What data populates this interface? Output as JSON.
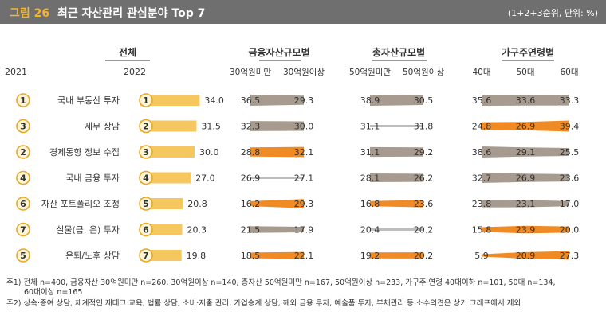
{
  "header": {
    "label": "그림 26",
    "title": "최근 자산관리 관심분야 Top 7",
    "unit": "(1+2+3순위, 단위: %)"
  },
  "chart_data": {
    "type": "bar",
    "title": "최근 자산관리 관심분야 Top 7",
    "unit": "(1+2+3순위, 단위: %)",
    "categories": [
      "국내 부동산 투자",
      "세무 상담",
      "경제동향 정보 수집",
      "국내 금융 투자",
      "자산 포트폴리오 조정",
      "실물(금, 은) 투자",
      "은퇴/노후 상담"
    ],
    "rank_2021": [
      "1",
      "3",
      "2",
      "4",
      "6",
      "7",
      "5"
    ],
    "rank_2022": [
      "1",
      "2",
      "3",
      "4",
      "5",
      "6",
      "7"
    ],
    "col_2021_label": "2021",
    "col_2022_label": "2022",
    "total": {
      "name": "전체",
      "values": [
        34.0,
        31.5,
        30.0,
        27.0,
        20.8,
        20.3,
        19.8
      ],
      "labels": [
        "34.0",
        "31.5",
        "30.0",
        "27.0",
        "20.8",
        "20.3",
        "19.8"
      ],
      "bar_color": "#f6c75e"
    },
    "groups": [
      {
        "name": "금융자산규모별",
        "subs": [
          "30억원미만",
          "30억원이상"
        ],
        "values": [
          [
            36.5,
            29.3
          ],
          [
            32.3,
            30.0
          ],
          [
            28.8,
            32.1
          ],
          [
            26.9,
            27.1
          ],
          [
            16.2,
            29.3
          ],
          [
            21.5,
            17.9
          ],
          [
            18.5,
            22.1
          ]
        ],
        "labels": [
          [
            "36.5",
            "29.3"
          ],
          [
            "32.3",
            "30.0"
          ],
          [
            "28.8",
            "32.1"
          ],
          [
            "26.9",
            "27.1"
          ],
          [
            "16.2",
            "29.3"
          ],
          [
            "21.5",
            "17.9"
          ],
          [
            "18.5",
            "22.1"
          ]
        ]
      },
      {
        "name": "총자산규모별",
        "subs": [
          "50억원미만",
          "50억원이상"
        ],
        "values": [
          [
            38.9,
            30.5
          ],
          [
            31.1,
            31.8
          ],
          [
            31.1,
            29.2
          ],
          [
            28.1,
            26.2
          ],
          [
            16.8,
            23.6
          ],
          [
            20.4,
            20.2
          ],
          [
            19.2,
            20.2
          ]
        ],
        "labels": [
          [
            "38.9",
            "30.5"
          ],
          [
            "31.1",
            "31.8"
          ],
          [
            "31.1",
            "29.2"
          ],
          [
            "28.1",
            "26.2"
          ],
          [
            "16.8",
            "23.6"
          ],
          [
            "20.4",
            "20.2"
          ],
          [
            "19.2",
            "20.2"
          ]
        ]
      },
      {
        "name": "가구주연령별",
        "subs": [
          "40대",
          "50대",
          "60대"
        ],
        "values": [
          [
            35.6,
            33.6,
            33.3
          ],
          [
            24.8,
            26.9,
            39.4
          ],
          [
            38.6,
            29.1,
            25.5
          ],
          [
            32.7,
            26.9,
            23.6
          ],
          [
            23.8,
            23.1,
            17.0
          ],
          [
            15.8,
            23.9,
            20.0
          ],
          [
            5.9,
            20.9,
            27.3
          ]
        ],
        "labels": [
          [
            "35.6",
            "33.6",
            "33.3"
          ],
          [
            "24.8",
            "26.9",
            "39.4"
          ],
          [
            "38.6",
            "29.1",
            "25.5"
          ],
          [
            "32.7",
            "26.9",
            "23.6"
          ],
          [
            "23.8",
            "23.1",
            "17.0"
          ],
          [
            "15.8",
            "23.9",
            "20.0"
          ],
          [
            "5.9",
            "20.9",
            "27.3"
          ]
        ]
      }
    ],
    "colors": {
      "increase": "#f08a24",
      "decrease": "#a69b8e",
      "flat": "#bdbdbd"
    }
  },
  "notes": {
    "note1_line1": "주1) 전체 n=400, 금융자산 30억원미만 n=260, 30억원이상 n=140, 총자산 50억원미만 n=167, 50억원이상 n=233, 가구주 연령 40대이하 n=101, 50대 n=134,",
    "note1_line2": "60대이상 n=165",
    "note2": "주2) 상속·증여 상담, 체계적인 재테크 교육, 법률 상담, 소비·지출 관리, 가업승계 상담, 해외 금융 투자, 예술품 투자, 부채관리 등 소수의견은 상기 그래프에서 제외"
  }
}
